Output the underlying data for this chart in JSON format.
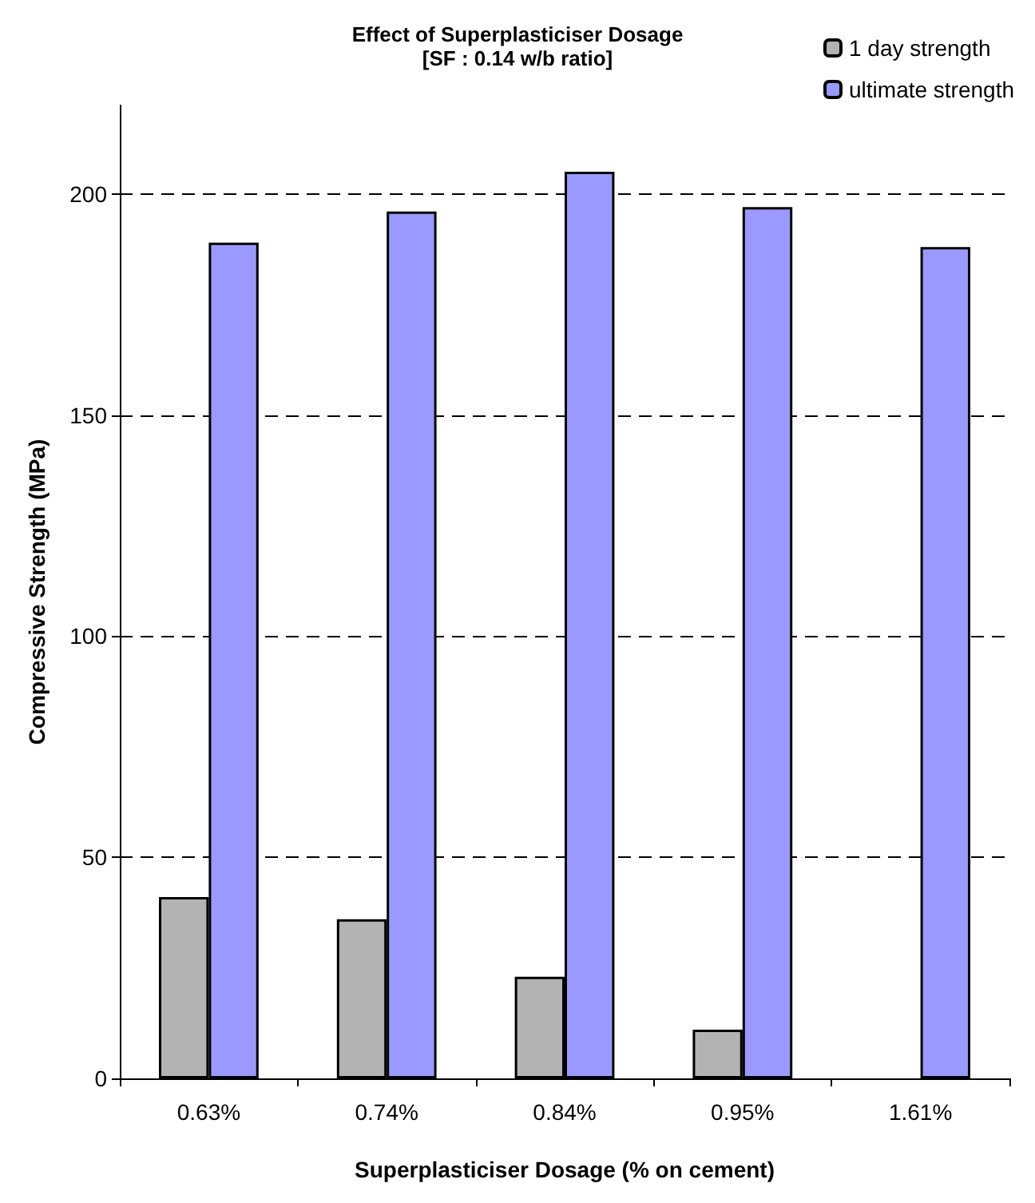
{
  "chart_data": {
    "type": "bar",
    "title": "Effect of Superplasticiser Dosage",
    "subtitle": "[SF : 0.14 w/b ratio]",
    "xlabel": "Superplasticiser Dosage (% on cement)",
    "ylabel": "Compressive Strength (MPa)",
    "categories": [
      "0.63%",
      "0.74%",
      "0.84%",
      "0.95%",
      "1.61%"
    ],
    "series": [
      {
        "name": "1 day strength",
        "color": "#b3b3b3",
        "values": [
          41,
          36,
          23,
          11,
          null
        ]
      },
      {
        "name": "ultimate strength",
        "color": "#9999ff",
        "values": [
          189,
          196,
          205,
          197,
          188
        ]
      }
    ],
    "ylim": [
      0,
      220
    ],
    "yticks": [
      0,
      50,
      100,
      150,
      200
    ],
    "grid": "y",
    "legend": "top right"
  }
}
